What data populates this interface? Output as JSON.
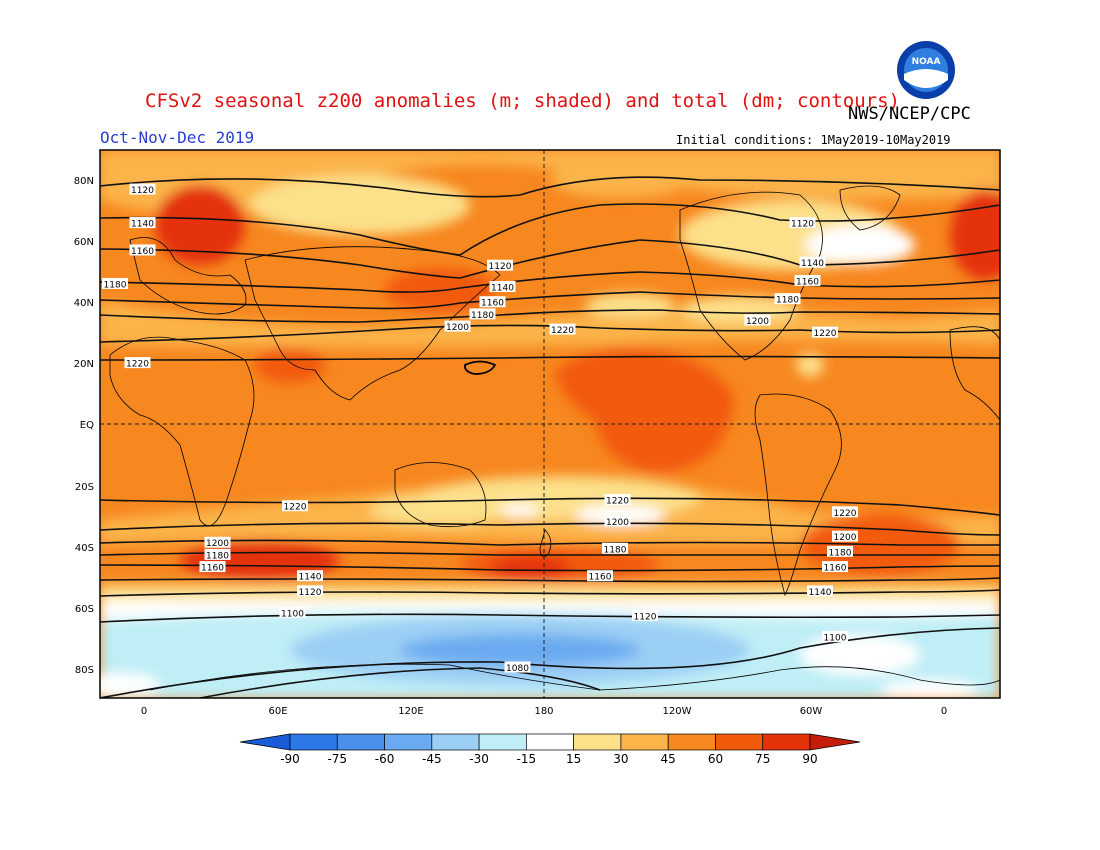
{
  "title": "CFSv2 seasonal z200 anomalies (m; shaded) and total (dm; contours)",
  "agency": "NWS/NCEP/CPC",
  "season": "Oct-Nov-Dec 2019",
  "initial_conditions": "Initial conditions: 1May2019-10May2019",
  "logo": {
    "text": "NOAA",
    "colors": {
      "ring": "#0a3ea8",
      "sky": "#2f7fe0",
      "bird": "#ffffff"
    }
  },
  "colors": {
    "title": "#e01010",
    "season": "#2a3fd0",
    "text": "#000000"
  },
  "map": {
    "lat_ticks": [
      "80N",
      "60N",
      "40N",
      "20N",
      "EQ",
      "20S",
      "40S",
      "60S",
      "80S"
    ],
    "lon_ticks": [
      "0",
      "60E",
      "120E",
      "180",
      "120W",
      "60W",
      "0"
    ],
    "contour_labels": [
      {
        "lat": 77,
        "lon": -3,
        "text": "1120"
      },
      {
        "lat": 66,
        "lon": -3,
        "text": "1140"
      },
      {
        "lat": 57,
        "lon": -3,
        "text": "1160"
      },
      {
        "lat": 46,
        "lon": -14,
        "text": "1180"
      },
      {
        "lat": 20,
        "lon": -5,
        "text": "1220"
      },
      {
        "lat": 52,
        "lon": 140,
        "text": "1120"
      },
      {
        "lat": 45,
        "lon": 141,
        "text": "1140"
      },
      {
        "lat": 40,
        "lon": 137,
        "text": "1160"
      },
      {
        "lat": 36,
        "lon": 133,
        "text": "1180"
      },
      {
        "lat": 32,
        "lon": 123,
        "text": "1200"
      },
      {
        "lat": 31,
        "lon": 165,
        "text": "1220"
      },
      {
        "lat": 66,
        "lon": -99,
        "text": "1120"
      },
      {
        "lat": 53,
        "lon": -95,
        "text": "1140"
      },
      {
        "lat": 47,
        "lon": -97,
        "text": "1160"
      },
      {
        "lat": 41,
        "lon": -105,
        "text": "1180"
      },
      {
        "lat": 34,
        "lon": -117,
        "text": "1200"
      },
      {
        "lat": 30,
        "lon": -90,
        "text": "1220"
      },
      {
        "lat": -27,
        "lon": 58,
        "text": "1220"
      },
      {
        "lat": -25,
        "lon": 187,
        "text": "1220"
      },
      {
        "lat": -32,
        "lon": 187,
        "text": "1200"
      },
      {
        "lat": -41,
        "lon": 186,
        "text": "1180"
      },
      {
        "lat": -50,
        "lon": 180,
        "text": "1160"
      },
      {
        "lat": -29,
        "lon": -82,
        "text": "1220"
      },
      {
        "lat": -37,
        "lon": -82,
        "text": "1200"
      },
      {
        "lat": -42,
        "lon": -84,
        "text": "1180"
      },
      {
        "lat": -47,
        "lon": -86,
        "text": "1160"
      },
      {
        "lat": -39,
        "lon": 27,
        "text": "1200"
      },
      {
        "lat": -43,
        "lon": 27,
        "text": "1180"
      },
      {
        "lat": -47,
        "lon": 25,
        "text": "1160"
      },
      {
        "lat": -50,
        "lon": 64,
        "text": "1140"
      },
      {
        "lat": -55,
        "lon": 64,
        "text": "1120"
      },
      {
        "lat": -55,
        "lon": -92,
        "text": "1140"
      },
      {
        "lat": -62,
        "lon": 57,
        "text": "1100"
      },
      {
        "lat": -63,
        "lon": 198,
        "text": "1120"
      },
      {
        "lat": -70,
        "lon": -86,
        "text": "1100"
      },
      {
        "lat": -80,
        "lon": 147,
        "text": "1080"
      }
    ]
  },
  "colorbar": {
    "ticks": [
      "-90",
      "-75",
      "-60",
      "-45",
      "-30",
      "-15",
      "15",
      "30",
      "45",
      "60",
      "75",
      "90"
    ],
    "colors": [
      "#1a5bd6",
      "#2c78e6",
      "#4a90ea",
      "#6aaaf0",
      "#9ccff4",
      "#bfeef6",
      "#ffffff",
      "#fce08a",
      "#fbb44a",
      "#f7871f",
      "#f25a0c",
      "#e4320a",
      "#c41d0a"
    ]
  }
}
